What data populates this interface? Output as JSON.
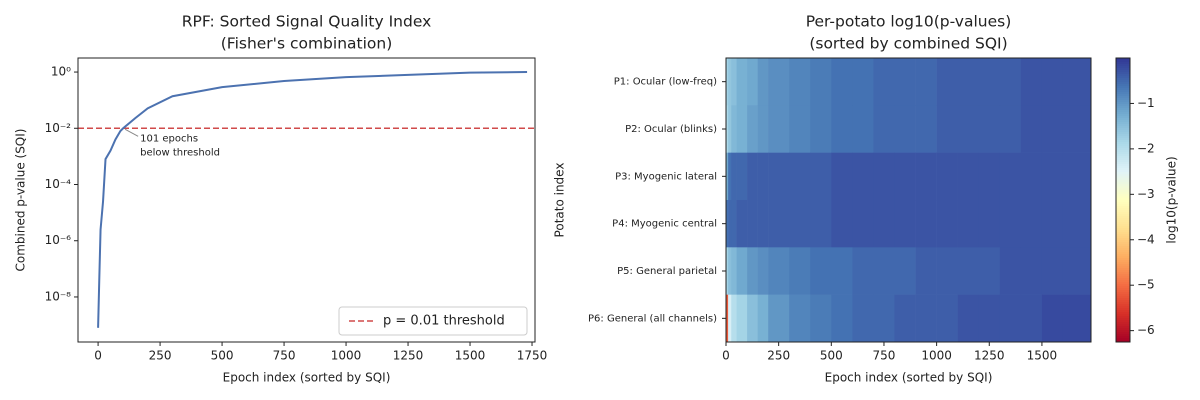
{
  "chart_data": [
    {
      "type": "line",
      "title": [
        "RPF: Sorted Signal Quality Index",
        "(Fisher's combination)"
      ],
      "xlabel": "Epoch index (sorted by SQI)",
      "ylabel": "Combined p-value (SQI)",
      "log_y": true,
      "x": [
        0,
        5,
        10,
        20,
        30,
        50,
        70,
        90,
        101,
        150,
        200,
        300,
        500,
        750,
        1000,
        1250,
        1500,
        1730
      ],
      "series": [
        {
          "name": "SQI",
          "color": "#4c72b0",
          "values": [
            8e-10,
            5e-08,
            2.5e-06,
            2.5e-05,
            0.0008,
            0.0016,
            0.004,
            0.008,
            0.01,
            0.023,
            0.051,
            0.138,
            0.29,
            0.48,
            0.66,
            0.79,
            0.95,
            1.0
          ]
        }
      ],
      "hlines": [
        {
          "y": 0.01,
          "name": "p = 0.01 threshold",
          "color": "#d04a4a"
        }
      ],
      "annotation": {
        "text": [
          "101 epochs",
          "below threshold"
        ],
        "xy": [
          101,
          0.01
        ]
      },
      "legend": "lower right",
      "xlim": [
        -81,
        1762
      ],
      "ylim": [
        2.5e-10,
        3.16
      ],
      "xticks": [
        0,
        250,
        500,
        750,
        1000,
        1250,
        1500,
        1750
      ],
      "yticks": [
        {
          "value": 1e-08,
          "label": "10⁻⁸"
        },
        {
          "value": 1e-06,
          "label": "10⁻⁶"
        },
        {
          "value": 0.0001,
          "label": "10⁻⁴"
        },
        {
          "value": 0.01,
          "label": "10⁻²"
        },
        {
          "value": 1,
          "label": "10⁰"
        }
      ]
    },
    {
      "type": "heatmap",
      "title": [
        "Per-potato log10(p-values)",
        "(sorted by combined SQI)"
      ],
      "xlabel": "Epoch index (sorted by SQI)",
      "ylabel": "Potato index",
      "rows": [
        "P1: Ocular (low-freq)",
        "P2: Ocular (blinks)",
        "P3: Myogenic lateral",
        "P4: Myogenic central",
        "P5: General parietal",
        "P6: General (all channels)"
      ],
      "x_edges": [
        0,
        10,
        25,
        50,
        100,
        150,
        200,
        300,
        400,
        500,
        600,
        700,
        800,
        900,
        1000,
        1100,
        1200,
        1300,
        1400,
        1500,
        1600,
        1733
      ],
      "values": [
        [
          -1.8,
          -1.6,
          -1.5,
          -1.3,
          -1.2,
          -1.0,
          -0.9,
          -0.8,
          -0.7,
          -0.6,
          -0.6,
          -0.5,
          -0.5,
          -0.5,
          -0.4,
          -0.4,
          -0.4,
          -0.4,
          -0.3,
          -0.3,
          -0.3
        ],
        [
          -1.9,
          -1.6,
          -1.4,
          -1.3,
          -1.1,
          -1.0,
          -0.9,
          -0.8,
          -0.7,
          -0.6,
          -0.6,
          -0.5,
          -0.5,
          -0.5,
          -0.4,
          -0.4,
          -0.4,
          -0.4,
          -0.3,
          -0.3,
          -0.3
        ],
        [
          -1.2,
          -0.6,
          -0.5,
          -0.5,
          -0.4,
          -0.4,
          -0.4,
          -0.4,
          -0.4,
          -0.3,
          -0.3,
          -0.3,
          -0.3,
          -0.3,
          -0.3,
          -0.3,
          -0.3,
          -0.3,
          -0.3,
          -0.3,
          -0.3
        ],
        [
          -0.6,
          -0.5,
          -0.5,
          -0.4,
          -0.4,
          -0.4,
          -0.4,
          -0.4,
          -0.4,
          -0.3,
          -0.3,
          -0.3,
          -0.3,
          -0.3,
          -0.3,
          -0.3,
          -0.3,
          -0.3,
          -0.3,
          -0.3,
          -0.3
        ],
        [
          -1.8,
          -1.5,
          -1.4,
          -1.2,
          -1.0,
          -0.9,
          -0.8,
          -0.7,
          -0.6,
          -0.6,
          -0.5,
          -0.5,
          -0.5,
          -0.4,
          -0.4,
          -0.4,
          -0.4,
          -0.3,
          -0.3,
          -0.3,
          -0.3
        ],
        [
          -5.2,
          -2.4,
          -2.0,
          -1.8,
          -1.5,
          -1.3,
          -1.0,
          -0.8,
          -0.7,
          -0.6,
          -0.5,
          -0.5,
          -0.4,
          -0.4,
          -0.4,
          -0.3,
          -0.3,
          -0.3,
          -0.3,
          -0.2,
          -0.2
        ]
      ],
      "colormap": [
        "#a50026",
        "#d73027",
        "#f46d43",
        "#fdae61",
        "#fee090",
        "#ffffbf",
        "#e0f3f8",
        "#abd9e9",
        "#74add1",
        "#4575b4",
        "#313695"
      ],
      "clim": [
        -6.25,
        0
      ],
      "colorbar_label": "log10(p-value)",
      "colorbar_ticks": [
        {
          "value": -1,
          "label": "−1"
        },
        {
          "value": -2,
          "label": "−2"
        },
        {
          "value": -3,
          "label": "−3"
        },
        {
          "value": -4,
          "label": "−4"
        },
        {
          "value": -5,
          "label": "−5"
        },
        {
          "value": -6,
          "label": "−6"
        }
      ],
      "xlim": [
        0,
        1733
      ],
      "xticks": [
        0,
        250,
        500,
        750,
        1000,
        1250,
        1500
      ]
    }
  ]
}
